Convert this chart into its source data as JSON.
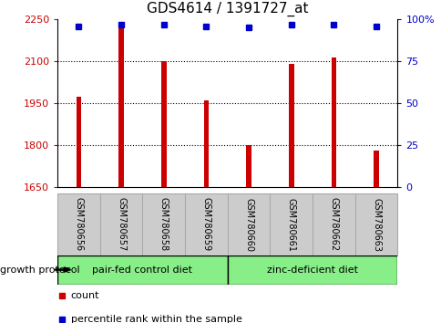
{
  "title": "GDS4614 / 1391727_at",
  "samples": [
    "GSM780656",
    "GSM780657",
    "GSM780658",
    "GSM780659",
    "GSM780660",
    "GSM780661",
    "GSM780662",
    "GSM780663"
  ],
  "counts": [
    1975,
    2232,
    2100,
    1960,
    1800,
    2090,
    2115,
    1780
  ],
  "percentiles": [
    96,
    97,
    97,
    96,
    95,
    97,
    97,
    96
  ],
  "ylim_left": [
    1650,
    2250
  ],
  "ylim_right": [
    0,
    100
  ],
  "yticks_left": [
    1650,
    1800,
    1950,
    2100,
    2250
  ],
  "yticks_right": [
    0,
    25,
    50,
    75,
    100
  ],
  "ytick_labels_right": [
    "0",
    "25",
    "50",
    "75",
    "100%"
  ],
  "bar_color": "#cc0000",
  "dot_color": "#0000cc",
  "group1_label": "pair-fed control diet",
  "group2_label": "zinc-deficient diet",
  "group1_indices": [
    0,
    1,
    2,
    3
  ],
  "group2_indices": [
    4,
    5,
    6,
    7
  ],
  "group_bg_color": "#88ee88",
  "sample_box_color": "#cccccc",
  "legend_count_label": "count",
  "legend_pct_label": "percentile rank within the sample",
  "growth_protocol_label": "growth protocol",
  "title_fontsize": 11,
  "tick_fontsize": 8,
  "bar_width": 0.12
}
